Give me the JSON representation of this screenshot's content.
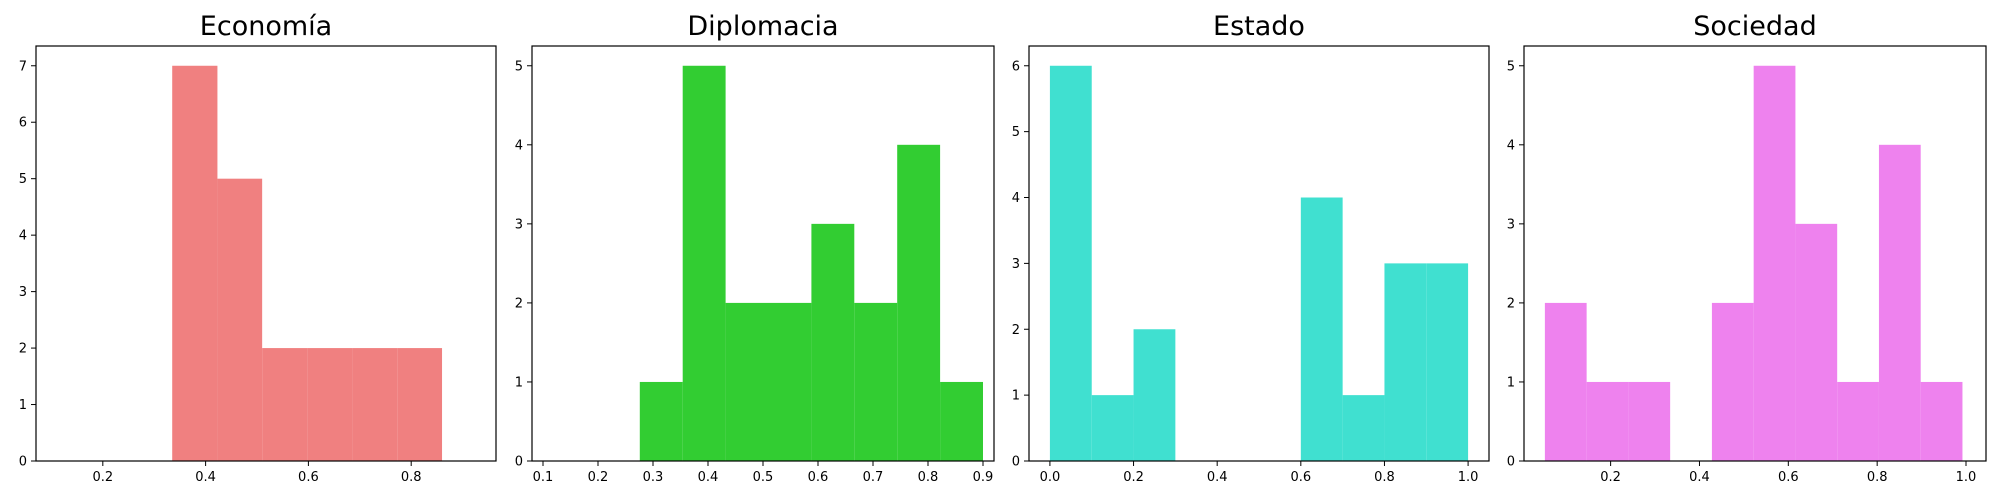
{
  "chart_data": [
    {
      "type": "histogram",
      "title": "Economía",
      "color": "#F08080",
      "xlim": [
        0.07,
        0.965
      ],
      "ylim": [
        0,
        7.35
      ],
      "xticks": [
        0.2,
        0.4,
        0.6,
        0.8
      ],
      "xtick_labels": [
        "0.2",
        "0.4",
        "0.6",
        "0.8"
      ],
      "yticks": [
        0,
        1,
        2,
        3,
        4,
        5,
        6,
        7
      ],
      "ytick_labels": [
        "0",
        "1",
        "2",
        "3",
        "4",
        "5",
        "6",
        "7"
      ],
      "bins": [
        {
          "x0": 0.335,
          "x1": 0.423,
          "count": 7
        },
        {
          "x0": 0.423,
          "x1": 0.51,
          "count": 5
        },
        {
          "x0": 0.51,
          "x1": 0.598,
          "count": 2
        },
        {
          "x0": 0.598,
          "x1": 0.685,
          "count": 2
        },
        {
          "x0": 0.685,
          "x1": 0.773,
          "count": 2
        },
        {
          "x0": 0.773,
          "x1": 0.86,
          "count": 2
        }
      ]
    },
    {
      "type": "histogram",
      "title": "Diplomacia",
      "color": "#32CD32",
      "xlim": [
        0.08,
        0.92
      ],
      "ylim": [
        0,
        5.25
      ],
      "xticks": [
        0.1,
        0.2,
        0.3,
        0.4,
        0.5,
        0.6,
        0.7,
        0.8,
        0.9
      ],
      "xtick_labels": [
        "0.1",
        "0.2",
        "0.3",
        "0.4",
        "0.5",
        "0.6",
        "0.7",
        "0.8",
        "0.9"
      ],
      "yticks": [
        0,
        1,
        2,
        3,
        4,
        5
      ],
      "ytick_labels": [
        "0",
        "1",
        "2",
        "3",
        "4",
        "5"
      ],
      "bins": [
        {
          "x0": 0.276,
          "x1": 0.354,
          "count": 1
        },
        {
          "x0": 0.354,
          "x1": 0.432,
          "count": 5
        },
        {
          "x0": 0.432,
          "x1": 0.51,
          "count": 2
        },
        {
          "x0": 0.51,
          "x1": 0.588,
          "count": 2
        },
        {
          "x0": 0.588,
          "x1": 0.666,
          "count": 3
        },
        {
          "x0": 0.666,
          "x1": 0.744,
          "count": 2
        },
        {
          "x0": 0.744,
          "x1": 0.822,
          "count": 4
        },
        {
          "x0": 0.822,
          "x1": 0.9,
          "count": 1
        }
      ]
    },
    {
      "type": "histogram",
      "title": "Estado",
      "color": "#40E0D0",
      "xlim": [
        -0.05,
        1.05
      ],
      "ylim": [
        0,
        6.3
      ],
      "xticks": [
        0.0,
        0.2,
        0.4,
        0.6,
        0.8,
        1.0
      ],
      "xtick_labels": [
        "0.0",
        "0.2",
        "0.4",
        "0.6",
        "0.8",
        "1.0"
      ],
      "yticks": [
        0,
        1,
        2,
        3,
        4,
        5,
        6
      ],
      "ytick_labels": [
        "0",
        "1",
        "2",
        "3",
        "4",
        "5",
        "6"
      ],
      "bins": [
        {
          "x0": 0.0,
          "x1": 0.1,
          "count": 6
        },
        {
          "x0": 0.1,
          "x1": 0.2,
          "count": 1
        },
        {
          "x0": 0.2,
          "x1": 0.3,
          "count": 2
        },
        {
          "x0": 0.3,
          "x1": 0.4,
          "count": 0
        },
        {
          "x0": 0.4,
          "x1": 0.5,
          "count": 0
        },
        {
          "x0": 0.5,
          "x1": 0.6,
          "count": 0
        },
        {
          "x0": 0.6,
          "x1": 0.7,
          "count": 4
        },
        {
          "x0": 0.7,
          "x1": 0.8,
          "count": 1
        },
        {
          "x0": 0.8,
          "x1": 0.9,
          "count": 3
        },
        {
          "x0": 0.9,
          "x1": 1.0,
          "count": 3
        }
      ]
    },
    {
      "type": "histogram",
      "title": "Sociedad",
      "color": "#EE82EE",
      "xlim": [
        0.005,
        1.045
      ],
      "ylim": [
        0,
        5.25
      ],
      "xticks": [
        0.2,
        0.4,
        0.6,
        0.8,
        1.0
      ],
      "xtick_labels": [
        "0.2",
        "0.4",
        "0.6",
        "0.8",
        "1.0"
      ],
      "yticks": [
        0,
        1,
        2,
        3,
        4,
        5
      ],
      "ytick_labels": [
        "0",
        "1",
        "2",
        "3",
        "4",
        "5"
      ],
      "bins": [
        {
          "x0": 0.052,
          "x1": 0.146,
          "count": 2
        },
        {
          "x0": 0.146,
          "x1": 0.24,
          "count": 1
        },
        {
          "x0": 0.24,
          "x1": 0.334,
          "count": 1
        },
        {
          "x0": 0.334,
          "x1": 0.428,
          "count": 0
        },
        {
          "x0": 0.428,
          "x1": 0.522,
          "count": 2
        },
        {
          "x0": 0.522,
          "x1": 0.616,
          "count": 5
        },
        {
          "x0": 0.616,
          "x1": 0.71,
          "count": 3
        },
        {
          "x0": 0.71,
          "x1": 0.804,
          "count": 1
        },
        {
          "x0": 0.804,
          "x1": 0.898,
          "count": 4
        },
        {
          "x0": 0.898,
          "x1": 0.992,
          "count": 1
        }
      ]
    }
  ]
}
